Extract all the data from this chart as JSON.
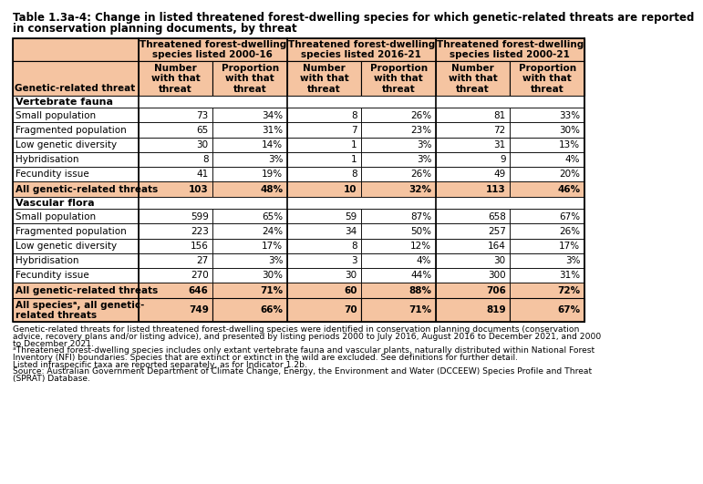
{
  "title_line1": "Table 1.3a-4: Change in listed threatened forest-dwelling species for which genetic-related threats are reported",
  "title_line2": "in conservation planning documents, by threat",
  "col_groups": [
    "Threatened forest-dwelling\nspecies listed 2000-16",
    "Threatened forest-dwelling\nspecies listed 2016-21",
    "Threatened forest-dwelling\nspecies listed 2000-21"
  ],
  "col_sub_headers": [
    "Number\nwith that\nthreat",
    "Proportion\nwith that\nthreat",
    "Number\nwith that\nthreat",
    "Proportion\nwith that\nthreat",
    "Number\nwith that\nthreat",
    "Proportion\nwith that\nthreat"
  ],
  "row_label_header": "Genetic-related threat",
  "sections": [
    {
      "section_header": "Vertebrate fauna",
      "rows": [
        {
          "label": "Small population",
          "values": [
            "73",
            "34%",
            "8",
            "26%",
            "81",
            "33%"
          ],
          "bold": false,
          "shaded": false
        },
        {
          "label": "Fragmented population",
          "values": [
            "65",
            "31%",
            "7",
            "23%",
            "72",
            "30%"
          ],
          "bold": false,
          "shaded": false
        },
        {
          "label": "Low genetic diversity",
          "values": [
            "30",
            "14%",
            "1",
            "3%",
            "31",
            "13%"
          ],
          "bold": false,
          "shaded": false
        },
        {
          "label": "Hybridisation",
          "values": [
            "8",
            "3%",
            "1",
            "3%",
            "9",
            "4%"
          ],
          "bold": false,
          "shaded": false
        },
        {
          "label": "Fecundity issue",
          "values": [
            "41",
            "19%",
            "8",
            "26%",
            "49",
            "20%"
          ],
          "bold": false,
          "shaded": false
        },
        {
          "label": "All genetic-related threats",
          "values": [
            "103",
            "48%",
            "10",
            "32%",
            "113",
            "46%"
          ],
          "bold": true,
          "shaded": true
        }
      ]
    },
    {
      "section_header": "Vascular flora",
      "rows": [
        {
          "label": "Small population",
          "values": [
            "599",
            "65%",
            "59",
            "87%",
            "658",
            "67%"
          ],
          "bold": false,
          "shaded": false
        },
        {
          "label": "Fragmented population",
          "values": [
            "223",
            "24%",
            "34",
            "50%",
            "257",
            "26%"
          ],
          "bold": false,
          "shaded": false
        },
        {
          "label": "Low genetic diversity",
          "values": [
            "156",
            "17%",
            "8",
            "12%",
            "164",
            "17%"
          ],
          "bold": false,
          "shaded": false
        },
        {
          "label": "Hybridisation",
          "values": [
            "27",
            "3%",
            "3",
            "4%",
            "30",
            "3%"
          ],
          "bold": false,
          "shaded": false
        },
        {
          "label": "Fecundity issue",
          "values": [
            "270",
            "30%",
            "30",
            "44%",
            "300",
            "31%"
          ],
          "bold": false,
          "shaded": false
        },
        {
          "label": "All genetic-related threats",
          "values": [
            "646",
            "71%",
            "60",
            "88%",
            "706",
            "72%"
          ],
          "bold": true,
          "shaded": true
        }
      ]
    }
  ],
  "summary_row": {
    "label": "All speciesᵃ, all genetic-\nrelated threats",
    "values": [
      "749",
      "66%",
      "70",
      "71%",
      "819",
      "67%"
    ],
    "bold": true,
    "shaded": true
  },
  "footnotes": [
    "Genetic-related threats for listed threatened forest-dwelling species were identified in conservation planning documents (conservation",
    "advice, recovery plans and/or listing advice), and presented by listing periods 2000 to July 2016, August 2016 to December 2021, and 2000",
    "to December 2021.",
    "ᵃThreatened forest-dwelling species includes only extant vertebrate fauna and vascular plants, naturally distributed within National Forest",
    "Inventory (NFI) boundaries. Species that are extinct or extinct in the wild are excluded. See definitions for further detail.",
    "Listed infraspecific taxa are reported separately, as for Indicator 1.2b.",
    "Source: Australian Government Department of Climate Change, Energy, the Environment and Water (DCCEEW) Species Profile and Threat",
    "(SPRAT) Database."
  ],
  "header_bg": "#F5C4A1",
  "shaded_bg": "#F5C4A1",
  "white_bg": "#FFFFFF",
  "border_dark": "#000000",
  "border_light": "#888888"
}
